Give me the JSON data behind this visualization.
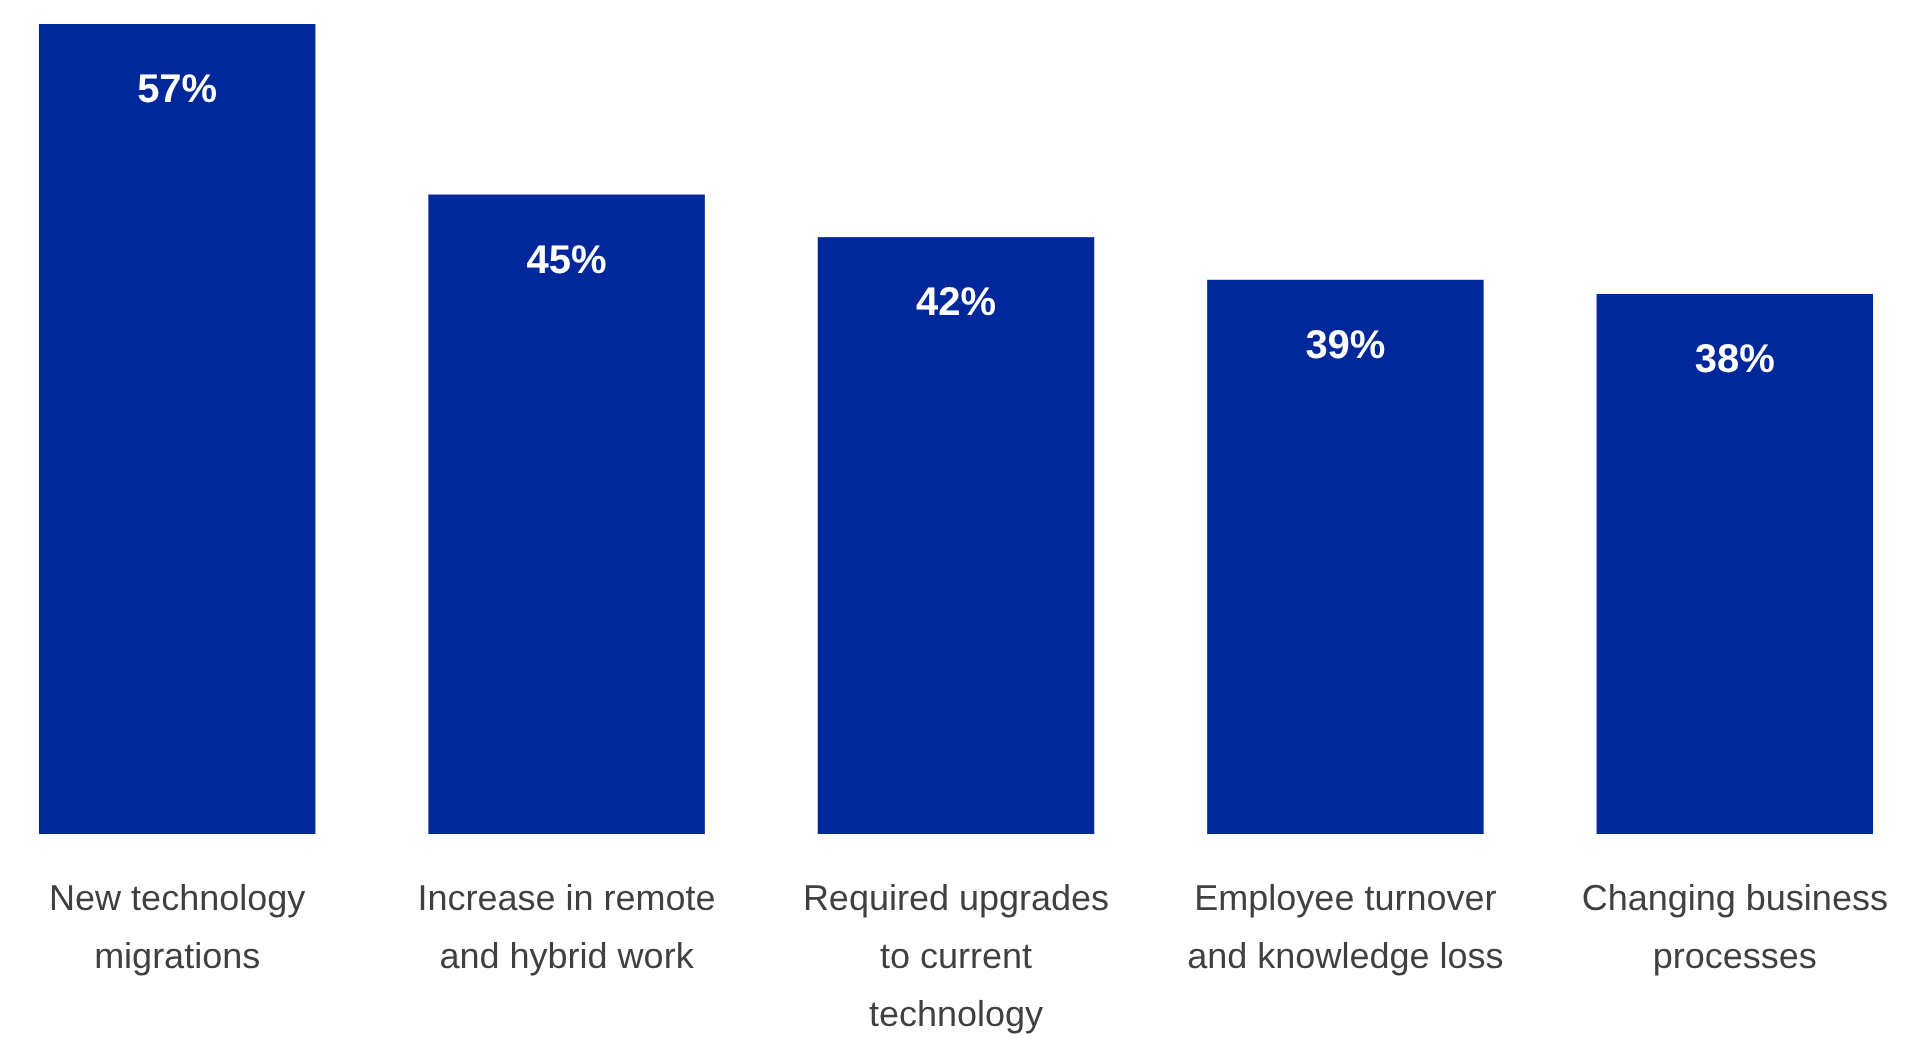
{
  "chart_data": {
    "type": "bar",
    "categories": [
      "New technology migrations",
      "Increase in remote and hybrid work",
      "Required upgrades to current technology",
      "Employee turnover and knowledge loss",
      "Changing business processes"
    ],
    "values": [
      57,
      45,
      42,
      39,
      38
    ],
    "value_labels": [
      "57%",
      "45%",
      "42%",
      "39%",
      "38%"
    ],
    "color": "#00289a"
  }
}
